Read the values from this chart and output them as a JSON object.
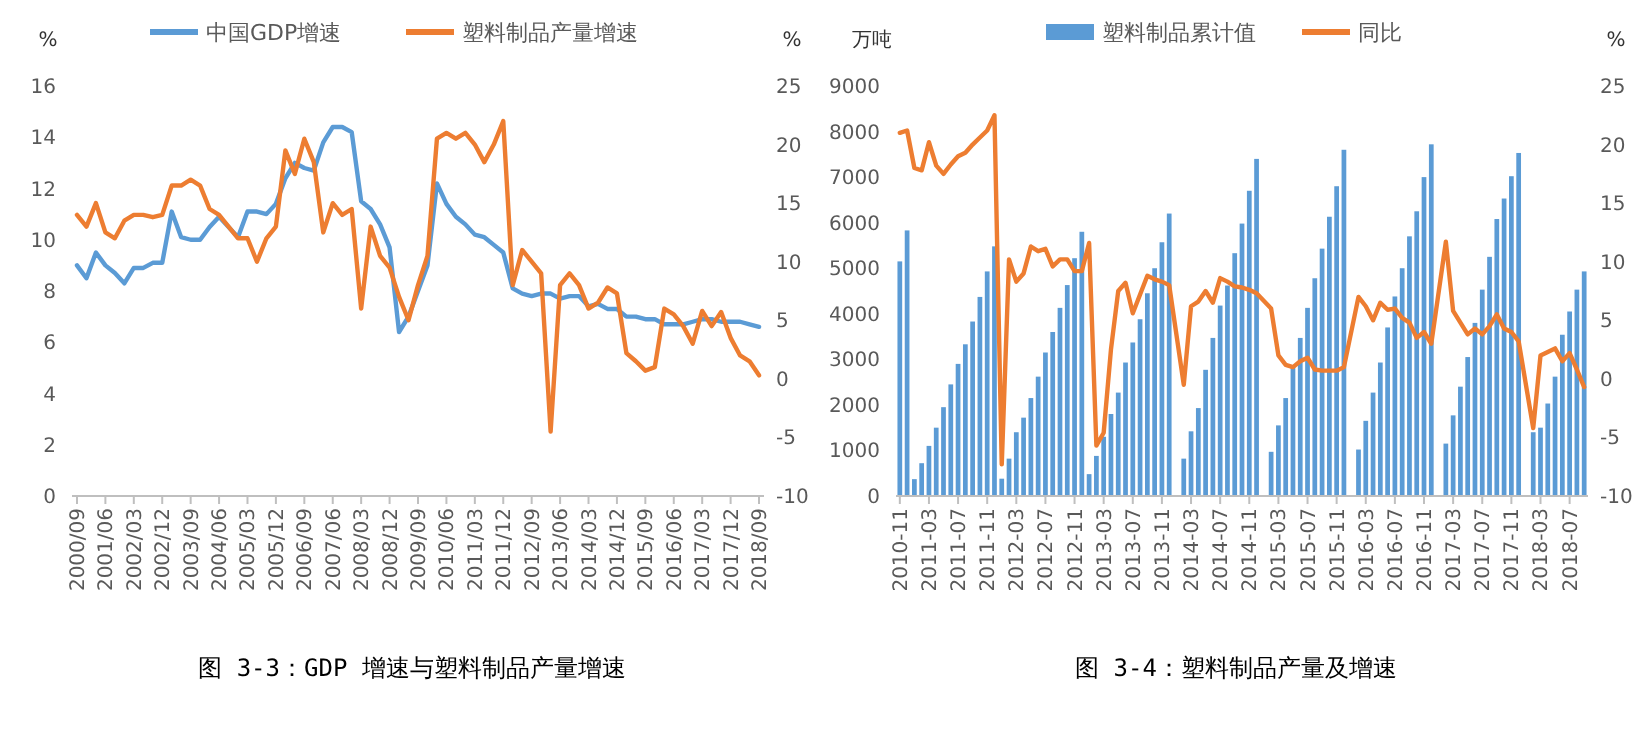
{
  "chart_data": [
    {
      "type": "line",
      "title": "图 3-3：GDP 增速与塑料制品产量增速",
      "ylabel": "%",
      "y2label": "%",
      "legend": "top",
      "categories": [
        "2000/09",
        null,
        null,
        "2001/06",
        null,
        null,
        "2002/03",
        null,
        null,
        "2002/12",
        null,
        null,
        "2003/09",
        null,
        null,
        "2004/06",
        null,
        null,
        "2005/03",
        null,
        null,
        "2005/12",
        null,
        null,
        "2006/09",
        null,
        null,
        "2007/06",
        null,
        null,
        "2008/03",
        null,
        null,
        "2008/12",
        null,
        null,
        "2009/09",
        null,
        null,
        "2010/06",
        null,
        null,
        "2011/03",
        null,
        null,
        "2011/12",
        null,
        null,
        "2012/09",
        null,
        null,
        "2013/06",
        null,
        null,
        "2014/03",
        null,
        null,
        "2014/12",
        null,
        null,
        "2015/09",
        null,
        null,
        "2016/06",
        null,
        null,
        "2017/03",
        null,
        null,
        "2017/12",
        null,
        null,
        "2018/09"
      ],
      "ylim": [
        0,
        16
      ],
      "yticks": [
        0,
        2,
        4,
        6,
        8,
        10,
        12,
        14,
        16
      ],
      "y2lim": [
        -10,
        25
      ],
      "y2ticks": [
        -10,
        -5,
        0,
        5,
        10,
        15,
        20,
        25
      ],
      "series": [
        {
          "name": "中国GDP增速",
          "color": "#5b9bd5",
          "values": [
            9.0,
            8.5,
            9.5,
            9.0,
            8.7,
            8.3,
            8.9,
            8.9,
            9.1,
            9.1,
            11.1,
            10.1,
            10.0,
            10.0,
            10.5,
            10.9,
            10.5,
            10.1,
            11.1,
            11.1,
            11.0,
            11.4,
            12.4,
            13.0,
            12.8,
            12.7,
            13.8,
            14.4,
            14.4,
            14.2,
            11.5,
            11.2,
            10.6,
            9.7,
            6.4,
            7.0,
            8.0,
            9.0,
            12.2,
            11.4,
            10.9,
            10.6,
            10.2,
            10.1,
            9.8,
            9.5,
            8.1,
            7.9,
            7.8,
            7.9,
            7.9,
            7.7,
            7.8,
            7.8,
            7.4,
            7.5,
            7.3,
            7.3,
            7.0,
            7.0,
            6.9,
            6.9,
            6.7,
            6.7,
            6.7,
            6.8,
            6.9,
            6.9,
            6.8,
            6.8,
            6.8,
            6.7,
            6.6
          ]
        },
        {
          "name": "塑料制品产量增速",
          "color": "#ed7d31",
          "axis": "y2",
          "values": [
            14,
            13,
            15,
            12.5,
            12,
            13.5,
            14,
            14,
            13.8,
            14,
            16.5,
            16.5,
            17,
            16.5,
            14.5,
            14,
            13,
            12,
            12,
            10,
            12,
            13,
            19.5,
            17.5,
            20.5,
            18.5,
            12.5,
            15,
            14,
            14.5,
            6,
            13,
            10.5,
            9.5,
            7,
            5,
            8,
            10.5,
            20.5,
            21,
            20.5,
            21,
            20,
            18.5,
            20,
            22,
            8,
            11,
            10,
            9,
            -4.5,
            8,
            9,
            8,
            6,
            6.5,
            7.8,
            7.3,
            2.2,
            1.5,
            0.7,
            1,
            6,
            5.5,
            4.5,
            3,
            5.8,
            4.5,
            5.7,
            3.5,
            2,
            1.5,
            0.3
          ]
        }
      ]
    },
    {
      "type": "bar",
      "title": "图 3-4：塑料制品产量及增速",
      "ylabel": "万吨",
      "y2label": "%",
      "legend": "top",
      "categories": [
        "2010-11",
        null,
        null,
        null,
        "2011-03",
        null,
        null,
        null,
        "2011-07",
        null,
        null,
        null,
        "2011-11",
        null,
        null,
        null,
        "2012-03",
        null,
        null,
        null,
        "2012-07",
        null,
        null,
        null,
        "2012-11",
        null,
        null,
        null,
        "2013-03",
        null,
        null,
        null,
        "2013-07",
        null,
        null,
        null,
        "2013-11",
        null,
        null,
        null,
        "2014-03",
        null,
        null,
        null,
        "2014-07",
        null,
        null,
        null,
        "2014-11",
        null,
        null,
        null,
        "2015-03",
        null,
        null,
        null,
        "2015-07",
        null,
        null,
        null,
        "2015-11",
        null,
        null,
        null,
        "2016-03",
        null,
        null,
        null,
        "2016-07",
        null,
        null,
        null,
        "2016-11",
        null,
        null,
        null,
        "2017-03",
        null,
        null,
        null,
        "2017-07",
        null,
        null,
        null,
        "2017-11",
        null,
        null,
        null,
        "2018-03",
        null,
        null,
        null,
        "2018-07",
        null,
        null
      ],
      "ylim": [
        0,
        9000
      ],
      "yticks": [
        0,
        1000,
        2000,
        3000,
        4000,
        5000,
        6000,
        7000,
        8000,
        9000
      ],
      "y2lim": [
        -10,
        25
      ],
      "y2ticks": [
        -10,
        -5,
        0,
        5,
        10,
        15,
        20,
        25
      ],
      "series": [
        {
          "name": "塑料制品累计值",
          "color": "#5b9bd5",
          "values": [
            5150,
            5830,
            370,
            720,
            1100,
            1500,
            1950,
            2450,
            2900,
            3330,
            3830,
            4370,
            4930,
            5480,
            380,
            820,
            1400,
            1720,
            2150,
            2620,
            3150,
            3600,
            4130,
            4630,
            5220,
            5800,
            480,
            880,
            1300,
            1800,
            2270,
            2930,
            3370,
            3880,
            4450,
            5000,
            5570,
            6200,
            null,
            820,
            1420,
            1930,
            2770,
            3470,
            4180,
            4620,
            5330,
            5980,
            6700,
            7400,
            null,
            970,
            1550,
            2150,
            2850,
            3470,
            4130,
            4780,
            5430,
            6130,
            6800,
            7600,
            null,
            1020,
            1650,
            2270,
            2930,
            3700,
            4380,
            5000,
            5700,
            6250,
            7000,
            7720,
            null,
            1150,
            1770,
            2400,
            3050,
            3800,
            4530,
            5250,
            6080,
            6530,
            7020,
            7530,
            null,
            1400,
            1500,
            2030,
            2620,
            3540,
            4050,
            4530,
            4930
          ]
        },
        {
          "name": "同比",
          "type": "line",
          "color": "#ed7d31",
          "axis": "y2",
          "values": [
            21,
            21.2,
            18,
            17.8,
            20.2,
            18.2,
            17.5,
            18.3,
            19,
            19.3,
            20,
            20.6,
            21.2,
            22.5,
            -7.3,
            10.2,
            8.3,
            9,
            11.3,
            10.9,
            11.1,
            9.6,
            10.2,
            10.2,
            9.2,
            9.2,
            11.6,
            -5.7,
            -4.6,
            2.5,
            7.5,
            8.2,
            5.6,
            7.2,
            8.8,
            8.5,
            8.3,
            8.0,
            null,
            -0.5,
            6.2,
            6.6,
            7.5,
            6.5,
            8.6,
            8.3,
            7.9,
            7.8,
            7.6,
            7.3,
            null,
            6.0,
            2.0,
            1.2,
            1.0,
            1.5,
            1.8,
            0.8,
            0.7,
            0.7,
            0.7,
            1.0,
            null,
            7,
            6.2,
            5,
            6.5,
            5.9,
            6.0,
            5.2,
            4.8,
            3.5,
            4.0,
            3.0,
            null,
            11.7,
            5.8,
            4.8,
            3.8,
            4.3,
            3.8,
            4.5,
            5.5,
            4.3,
            4.0,
            3.2,
            null,
            -4.2,
            2.0,
            2.3,
            2.6,
            1.5,
            2.2,
            0.8,
            -0.7
          ]
        }
      ]
    }
  ]
}
